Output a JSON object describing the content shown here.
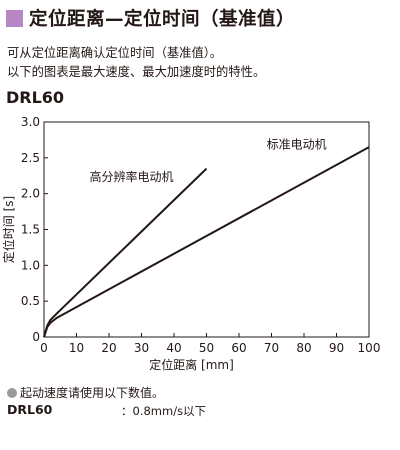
{
  "header": {
    "title": "定位距离—定位时间（基准值）",
    "marker_color": "#b887c3"
  },
  "description": {
    "line1": "可从定位距离确认定位时间（基准值）。",
    "line2": "以下的图表是最大速度、最大加速度时的特性。"
  },
  "model": "DRL60",
  "chart_data": {
    "type": "line",
    "title": "",
    "xlabel": "定位距离 [mm]",
    "ylabel": "定位时间 [s]",
    "xlim": [
      0,
      100
    ],
    "ylim": [
      0,
      3.0
    ],
    "xticks": [
      "0",
      "10",
      "20",
      "30",
      "40",
      "50",
      "60",
      "70",
      "80",
      "90",
      "100"
    ],
    "yticks": [
      "0",
      "0.5",
      "1.0",
      "1.5",
      "2.0",
      "2.5",
      "3.0"
    ],
    "grid": false,
    "series": [
      {
        "name": "高分辨率电动机",
        "color": "#231815",
        "points": [
          [
            0,
            0
          ],
          [
            1,
            0.16
          ],
          [
            2,
            0.24
          ],
          [
            4,
            0.33
          ],
          [
            50,
            2.35
          ]
        ]
      },
      {
        "name": "标准电动机",
        "color": "#231815",
        "points": [
          [
            0,
            0
          ],
          [
            1,
            0.14
          ],
          [
            2,
            0.2
          ],
          [
            4,
            0.27
          ],
          [
            100,
            2.65
          ]
        ]
      }
    ]
  },
  "notes": {
    "line1": "起动速度请使用以下数值。",
    "bullet_color": "#9b9b9b",
    "model": "DRL60",
    "value": "：0.8mm/s以下"
  }
}
